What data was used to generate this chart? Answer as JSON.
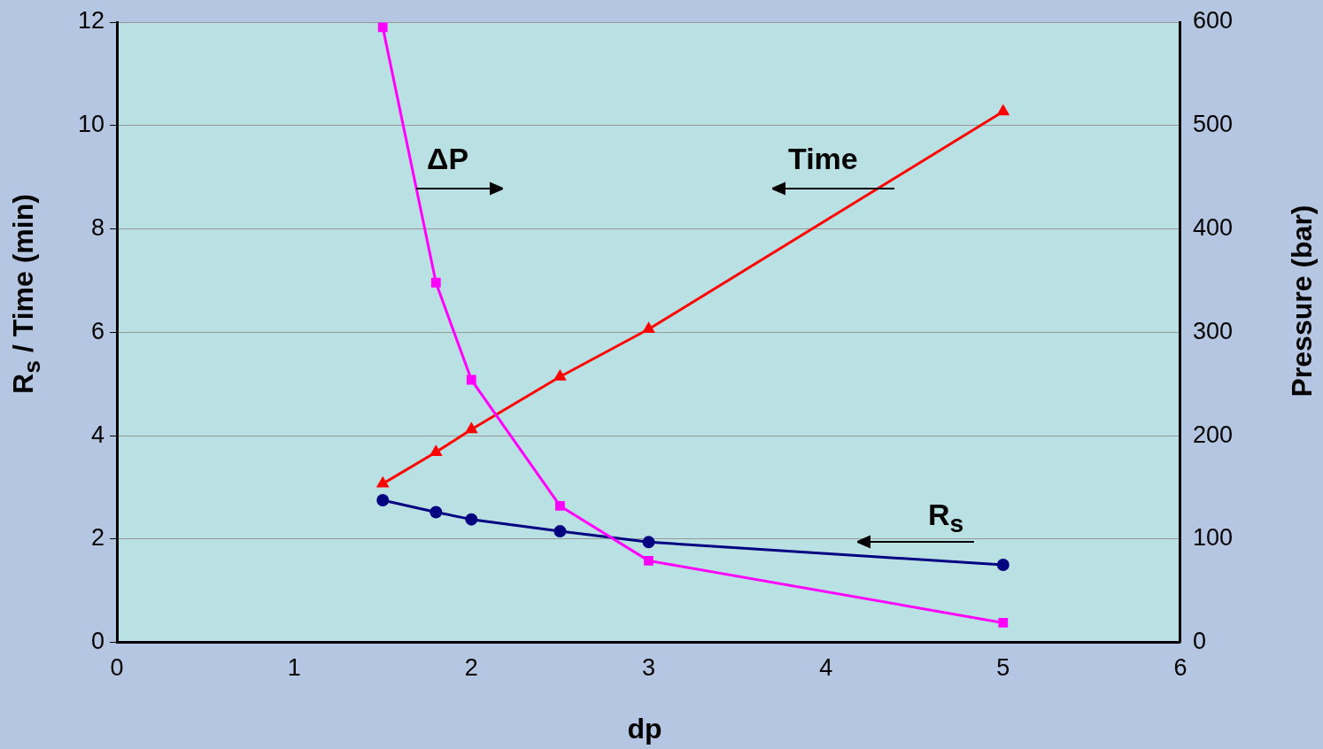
{
  "chart_data": {
    "type": "line",
    "xlabel": "dp",
    "ylabel": "R$_{s}$ / Time (min)",
    "y2label": "Pressure (bar)",
    "x": [
      1.5,
      1.8,
      2,
      2.5,
      3,
      5
    ],
    "xlim": [
      0,
      6
    ],
    "xticks": [
      0,
      1,
      2,
      3,
      4,
      5,
      6
    ],
    "ylim": [
      0,
      12
    ],
    "yticks": [
      0,
      2,
      4,
      6,
      8,
      10,
      12
    ],
    "y2lim": [
      0,
      600
    ],
    "y2ticks": [
      0,
      100,
      200,
      300,
      400,
      500,
      600
    ],
    "grid": "y",
    "legend": false,
    "line_style": "solid",
    "series": [
      {
        "name": "ΔP",
        "color": "#ff00ff",
        "axis": "y2",
        "marker": "square",
        "values": [
          595,
          348,
          254,
          132,
          79,
          19
        ]
      },
      {
        "name": "Time",
        "color": "#ff0000",
        "axis": "y",
        "marker": "triangle",
        "values": [
          3.07,
          3.68,
          4.12,
          5.14,
          6.06,
          10.27
        ]
      },
      {
        "name": "R$_{s}$",
        "color": "#000080",
        "axis": "y",
        "marker": "circle",
        "values": [
          2.75,
          2.52,
          2.38,
          2.15,
          1.94,
          1.5
        ]
      }
    ]
  }
}
